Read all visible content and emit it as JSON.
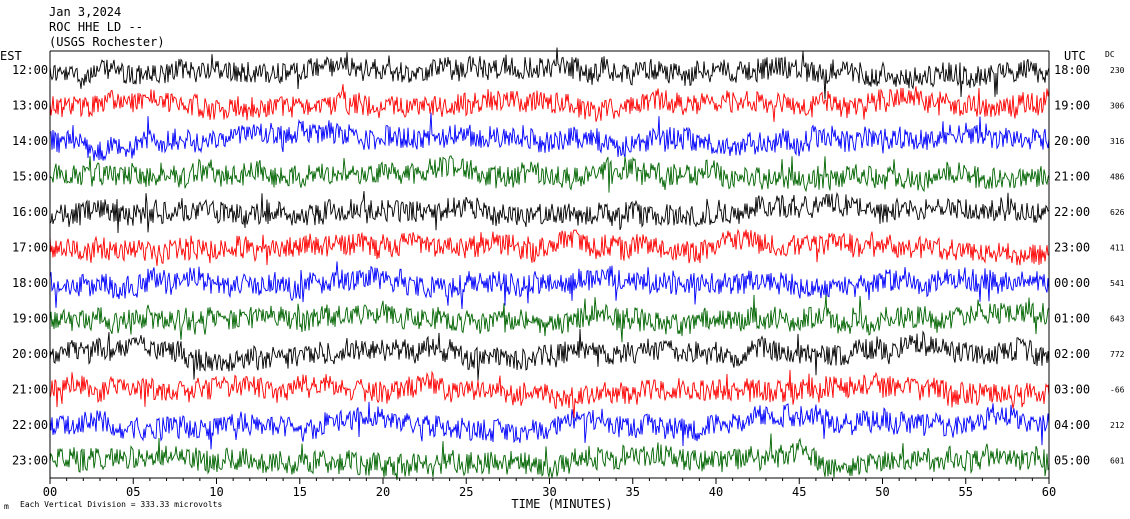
{
  "chart_data": {
    "type": "line",
    "header": [
      "Jan 3,2024",
      "ROC HHE LD --",
      "(USGS Rochester)"
    ],
    "left_tz": "EST",
    "right_tz": "UTC",
    "dc_label": "DC",
    "xlabel": "TIME (MINUTES)",
    "x_ticks": [
      "00",
      "05",
      "10",
      "15",
      "20",
      "25",
      "30",
      "35",
      "40",
      "45",
      "50",
      "55",
      "60"
    ],
    "xlim": [
      0,
      60
    ],
    "footer": "Each Vertical Division = 333.33 microvolts",
    "footer_mark": "m",
    "colors": [
      "#000000",
      "#ff0000",
      "#0000ff",
      "#006400"
    ],
    "traces": [
      {
        "est": "12:00",
        "utc": "18:00",
        "dc": "230"
      },
      {
        "est": "13:00",
        "utc": "19:00",
        "dc": "306"
      },
      {
        "est": "14:00",
        "utc": "20:00",
        "dc": "316"
      },
      {
        "est": "15:00",
        "utc": "21:00",
        "dc": "486"
      },
      {
        "est": "16:00",
        "utc": "22:00",
        "dc": "626"
      },
      {
        "est": "17:00",
        "utc": "23:00",
        "dc": "411"
      },
      {
        "est": "18:00",
        "utc": "00:00",
        "dc": "541"
      },
      {
        "est": "19:00",
        "utc": "01:00",
        "dc": "643"
      },
      {
        "est": "20:00",
        "utc": "02:00",
        "dc": "772"
      },
      {
        "est": "21:00",
        "utc": "03:00",
        "dc": "-66"
      },
      {
        "est": "22:00",
        "utc": "04:00",
        "dc": "212"
      },
      {
        "est": "23:00",
        "utc": "05:00",
        "dc": "601"
      }
    ]
  }
}
